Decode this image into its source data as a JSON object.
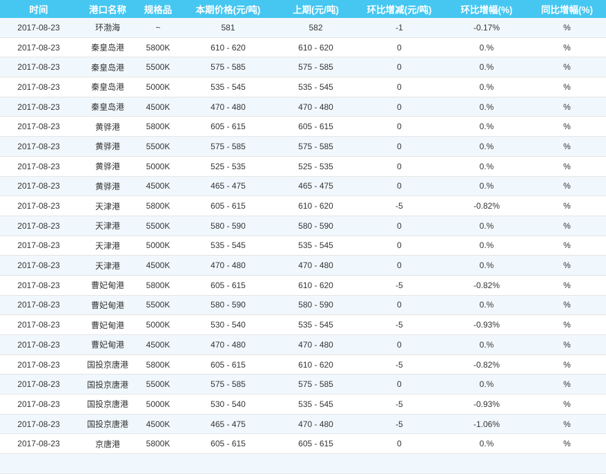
{
  "chart_data": {
    "type": "table",
    "title": "",
    "columns": [
      {
        "key": "time",
        "label": "时间"
      },
      {
        "key": "port",
        "label": "港口名称"
      },
      {
        "key": "spec",
        "label": "规格品"
      },
      {
        "key": "current-price",
        "label": "本期价格(元/吨)"
      },
      {
        "key": "previous-price",
        "label": "上期(元/吨)"
      },
      {
        "key": "mom-change",
        "label": "环比增减(元/吨)"
      },
      {
        "key": "mom-pct",
        "label": "环比增幅(%)"
      },
      {
        "key": "yoy-pct",
        "label": "同比增幅(%)"
      }
    ],
    "rows": [
      {
        "cells": [
          "2017-08-23",
          "环渤海",
          "~",
          "581",
          "582",
          "-1",
          "-0.17%",
          "%"
        ]
      },
      {
        "cells": [
          "2017-08-23",
          "秦皇岛港",
          "5800K",
          "610 - 620",
          "610 - 620",
          "0",
          "0.%",
          "%"
        ]
      },
      {
        "cells": [
          "2017-08-23",
          "秦皇岛港",
          "5500K",
          "575 - 585",
          "575 - 585",
          "0",
          "0.%",
          "%"
        ]
      },
      {
        "cells": [
          "2017-08-23",
          "秦皇岛港",
          "5000K",
          "535 - 545",
          "535 - 545",
          "0",
          "0.%",
          "%"
        ]
      },
      {
        "cells": [
          "2017-08-23",
          "秦皇岛港",
          "4500K",
          "470 - 480",
          "470 - 480",
          "0",
          "0.%",
          "%"
        ]
      },
      {
        "cells": [
          "2017-08-23",
          "黄骅港",
          "5800K",
          "605 - 615",
          "605 - 615",
          "0",
          "0.%",
          "%"
        ]
      },
      {
        "cells": [
          "2017-08-23",
          "黄骅港",
          "5500K",
          "575 - 585",
          "575 - 585",
          "0",
          "0.%",
          "%"
        ]
      },
      {
        "cells": [
          "2017-08-23",
          "黄骅港",
          "5000K",
          "525 - 535",
          "525 - 535",
          "0",
          "0.%",
          "%"
        ]
      },
      {
        "cells": [
          "2017-08-23",
          "黄骅港",
          "4500K",
          "465 - 475",
          "465 - 475",
          "0",
          "0.%",
          "%"
        ]
      },
      {
        "cells": [
          "2017-08-23",
          "天津港",
          "5800K",
          "605 - 615",
          "610 - 620",
          "-5",
          "-0.82%",
          "%"
        ]
      },
      {
        "cells": [
          "2017-08-23",
          "天津港",
          "5500K",
          "580 - 590",
          "580 - 590",
          "0",
          "0.%",
          "%"
        ]
      },
      {
        "cells": [
          "2017-08-23",
          "天津港",
          "5000K",
          "535 - 545",
          "535 - 545",
          "0",
          "0.%",
          "%"
        ]
      },
      {
        "cells": [
          "2017-08-23",
          "天津港",
          "4500K",
          "470 - 480",
          "470 - 480",
          "0",
          "0.%",
          "%"
        ]
      },
      {
        "cells": [
          "2017-08-23",
          "曹妃甸港",
          "5800K",
          "605 - 615",
          "610 - 620",
          "-5",
          "-0.82%",
          "%"
        ]
      },
      {
        "cells": [
          "2017-08-23",
          "曹妃甸港",
          "5500K",
          "580 - 590",
          "580 - 590",
          "0",
          "0.%",
          "%"
        ]
      },
      {
        "cells": [
          "2017-08-23",
          "曹妃甸港",
          "5000K",
          "530 - 540",
          "535 - 545",
          "-5",
          "-0.93%",
          "%"
        ]
      },
      {
        "cells": [
          "2017-08-23",
          "曹妃甸港",
          "4500K",
          "470 - 480",
          "470 - 480",
          "0",
          "0.%",
          "%"
        ]
      },
      {
        "cells": [
          "2017-08-23",
          "国投京唐港",
          "5800K",
          "605 - 615",
          "610 - 620",
          "-5",
          "-0.82%",
          "%"
        ]
      },
      {
        "cells": [
          "2017-08-23",
          "国投京唐港",
          "5500K",
          "575 - 585",
          "575 - 585",
          "0",
          "0.%",
          "%"
        ]
      },
      {
        "cells": [
          "2017-08-23",
          "国投京唐港",
          "5000K",
          "530 - 540",
          "535 - 545",
          "-5",
          "-0.93%",
          "%"
        ]
      },
      {
        "cells": [
          "2017-08-23",
          "国投京唐港",
          "4500K",
          "465 - 475",
          "470 - 480",
          "-5",
          "-1.06%",
          "%"
        ]
      },
      {
        "cells": [
          "2017-08-23",
          "京唐港",
          "5800K",
          "605 - 615",
          "605 - 615",
          "0",
          "0.%",
          "%"
        ]
      }
    ]
  },
  "colors": {
    "header_bg": "#46c7f1",
    "header_text": "#ffffff",
    "row_alt_bg": "#f1f8fd",
    "row_bg": "#ffffff",
    "border": "#e4e4e4",
    "text": "#333333"
  }
}
